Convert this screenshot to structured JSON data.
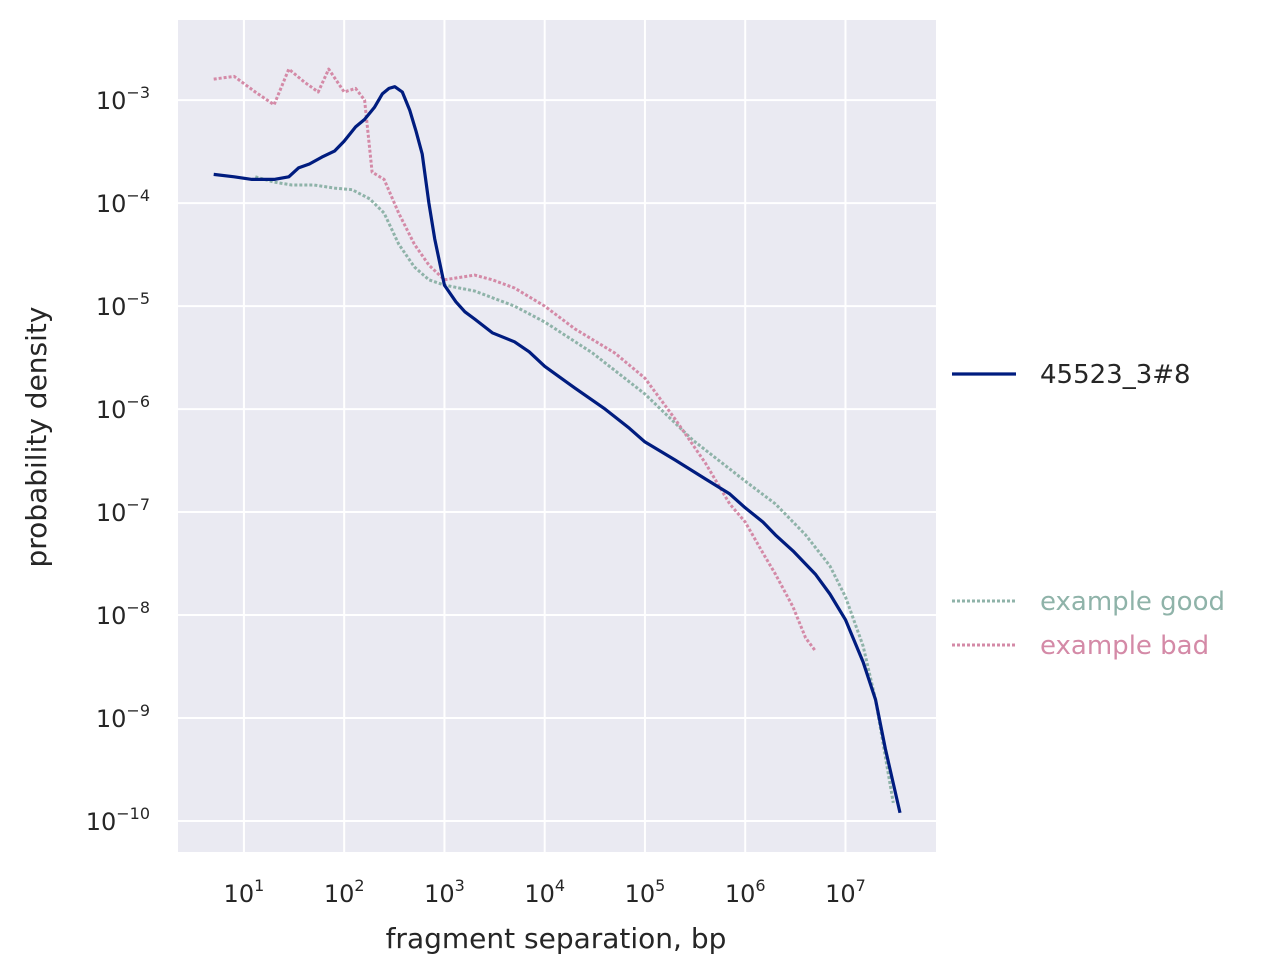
{
  "chart_data": {
    "type": "line",
    "title": "",
    "xlabel": "fragment separation, bp",
    "ylabel": "probability density",
    "xscale": "log",
    "yscale": "log",
    "xlim": [
      2.2,
      80000000
    ],
    "ylim": [
      5e-11,
      0.006
    ],
    "grid": true,
    "background": "#eaeaf2",
    "x_ticks": [
      {
        "base": "10",
        "exp": "1",
        "value": 10
      },
      {
        "base": "10",
        "exp": "2",
        "value": 100
      },
      {
        "base": "10",
        "exp": "3",
        "value": 1000
      },
      {
        "base": "10",
        "exp": "4",
        "value": 10000
      },
      {
        "base": "10",
        "exp": "5",
        "value": 100000
      },
      {
        "base": "10",
        "exp": "6",
        "value": 1000000
      },
      {
        "base": "10",
        "exp": "7",
        "value": 10000000
      }
    ],
    "y_ticks": [
      {
        "base": "10",
        "exp": "−3",
        "value": 0.001
      },
      {
        "base": "10",
        "exp": "−4",
        "value": 0.0001
      },
      {
        "base": "10",
        "exp": "−5",
        "value": 1e-05
      },
      {
        "base": "10",
        "exp": "−6",
        "value": 1e-06
      },
      {
        "base": "10",
        "exp": "−7",
        "value": 1e-07
      },
      {
        "base": "10",
        "exp": "−8",
        "value": 1e-08
      },
      {
        "base": "10",
        "exp": "−9",
        "value": 1e-09
      },
      {
        "base": "10",
        "exp": "−10",
        "value": 1e-10
      }
    ],
    "legend_placement": "right",
    "series": [
      {
        "name": "45523_3#8",
        "color": "#001c7f",
        "style": "solid",
        "points": [
          [
            5,
            0.00019
          ],
          [
            8,
            0.00018
          ],
          [
            12,
            0.00017
          ],
          [
            20,
            0.00017
          ],
          [
            28,
            0.00018
          ],
          [
            35,
            0.00022
          ],
          [
            45,
            0.00024
          ],
          [
            60,
            0.00028
          ],
          [
            80,
            0.00032
          ],
          [
            100,
            0.0004
          ],
          [
            130,
            0.00055
          ],
          [
            160,
            0.00065
          ],
          [
            200,
            0.00085
          ],
          [
            240,
            0.00115
          ],
          [
            280,
            0.0013
          ],
          [
            320,
            0.00135
          ],
          [
            380,
            0.0012
          ],
          [
            450,
            0.0008
          ],
          [
            520,
            0.0005
          ],
          [
            600,
            0.0003
          ],
          [
            700,
            0.0001
          ],
          [
            800,
            4.5e-05
          ],
          [
            1000,
            1.6e-05
          ],
          [
            1300,
            1.1e-05
          ],
          [
            1600,
            8.8e-06
          ],
          [
            2000,
            7.5e-06
          ],
          [
            3000,
            5.5e-06
          ],
          [
            5000,
            4.5e-06
          ],
          [
            7000,
            3.6e-06
          ],
          [
            10000,
            2.6e-06
          ],
          [
            20000,
            1.6e-06
          ],
          [
            40000,
            1e-06
          ],
          [
            70000,
            6.5e-07
          ],
          [
            100000,
            4.8e-07
          ],
          [
            200000,
            3.2e-07
          ],
          [
            400000,
            2.1e-07
          ],
          [
            700000,
            1.5e-07
          ],
          [
            1000000,
            1.1e-07
          ],
          [
            1500000,
            8e-08
          ],
          [
            2000000,
            6e-08
          ],
          [
            3000000,
            4.2e-08
          ],
          [
            5000000,
            2.5e-08
          ],
          [
            7000000,
            1.6e-08
          ],
          [
            10000000,
            9e-09
          ],
          [
            15000000,
            3.5e-09
          ],
          [
            20000000,
            1.5e-09
          ],
          [
            25000000,
            5e-10
          ],
          [
            35000000,
            1.2e-10
          ]
        ]
      },
      {
        "name": "example good",
        "color": "#8fb3a9",
        "style": "dotted",
        "points": [
          [
            13,
            0.00018
          ],
          [
            20,
            0.00016
          ],
          [
            30,
            0.00015
          ],
          [
            50,
            0.00015
          ],
          [
            80,
            0.00014
          ],
          [
            120,
            0.000135
          ],
          [
            180,
            0.00011
          ],
          [
            250,
            8e-05
          ],
          [
            350,
            4e-05
          ],
          [
            500,
            2.4e-05
          ],
          [
            700,
            1.8e-05
          ],
          [
            1000,
            1.6e-05
          ],
          [
            2000,
            1.4e-05
          ],
          [
            5000,
            1e-05
          ],
          [
            10000,
            7e-06
          ],
          [
            30000,
            3.5e-06
          ],
          [
            100000,
            1.4e-06
          ],
          [
            300000,
            5e-07
          ],
          [
            1000000,
            2e-07
          ],
          [
            2000000,
            1.2e-07
          ],
          [
            4000000,
            6e-08
          ],
          [
            7000000,
            3e-08
          ],
          [
            10000000,
            1.5e-08
          ],
          [
            15000000,
            5e-09
          ],
          [
            20000000,
            1.5e-09
          ],
          [
            30000000,
            1.5e-10
          ]
        ]
      },
      {
        "name": "example bad",
        "color": "#d48aa7",
        "style": "dotted",
        "points": [
          [
            5,
            0.0016
          ],
          [
            8,
            0.0017
          ],
          [
            13,
            0.0012
          ],
          [
            20,
            0.0009
          ],
          [
            28,
            0.002
          ],
          [
            40,
            0.0015
          ],
          [
            55,
            0.0012
          ],
          [
            70,
            0.002
          ],
          [
            100,
            0.0012
          ],
          [
            130,
            0.0013
          ],
          [
            160,
            0.001
          ],
          [
            190,
            0.0002
          ],
          [
            250,
            0.00017
          ],
          [
            350,
            8e-05
          ],
          [
            500,
            4e-05
          ],
          [
            700,
            2.5e-05
          ],
          [
            1000,
            1.8e-05
          ],
          [
            2000,
            2e-05
          ],
          [
            3000,
            1.8e-05
          ],
          [
            5000,
            1.5e-05
          ],
          [
            10000,
            1e-05
          ],
          [
            20000,
            6e-06
          ],
          [
            50000,
            3.5e-06
          ],
          [
            100000,
            2e-06
          ],
          [
            200000,
            8e-07
          ],
          [
            400000,
            3e-07
          ],
          [
            700000,
            1.2e-07
          ],
          [
            1000000,
            8e-08
          ],
          [
            1500000,
            4e-08
          ],
          [
            2000000,
            2.5e-08
          ],
          [
            3000000,
            1.2e-08
          ],
          [
            4000000,
            6e-09
          ],
          [
            5000000,
            4.5e-09
          ]
        ]
      }
    ]
  }
}
